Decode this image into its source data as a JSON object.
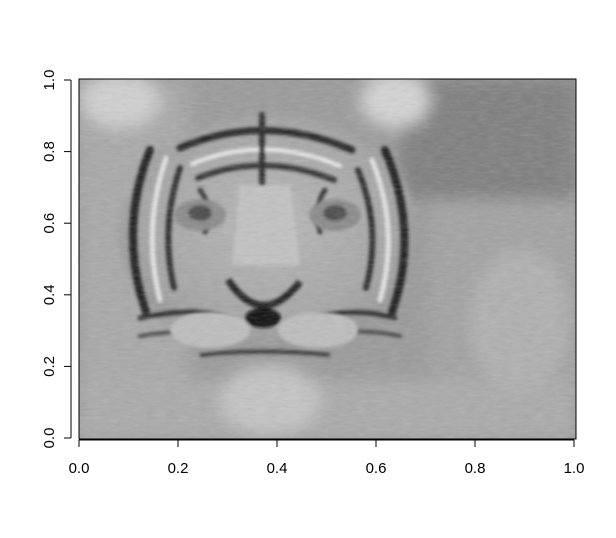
{
  "chart_data": {
    "type": "heatmap",
    "title": "",
    "xlabel": "",
    "ylabel": "",
    "xlim": [
      0,
      1
    ],
    "ylim": [
      0,
      1
    ],
    "x_ticks": [
      0.0,
      0.2,
      0.4,
      0.6,
      0.8,
      1.0
    ],
    "y_ticks": [
      0.0,
      0.2,
      0.4,
      0.6,
      0.8,
      1.0
    ],
    "x_tick_labels": [
      "0.0",
      "0.2",
      "0.4",
      "0.6",
      "0.8",
      "1.0"
    ],
    "y_tick_labels": [
      "0.0",
      "0.2",
      "0.4",
      "0.6",
      "0.8",
      "1.0"
    ],
    "colormap": "grayscale",
    "image_subject": "tiger-face",
    "grid": false,
    "legend": "none"
  }
}
